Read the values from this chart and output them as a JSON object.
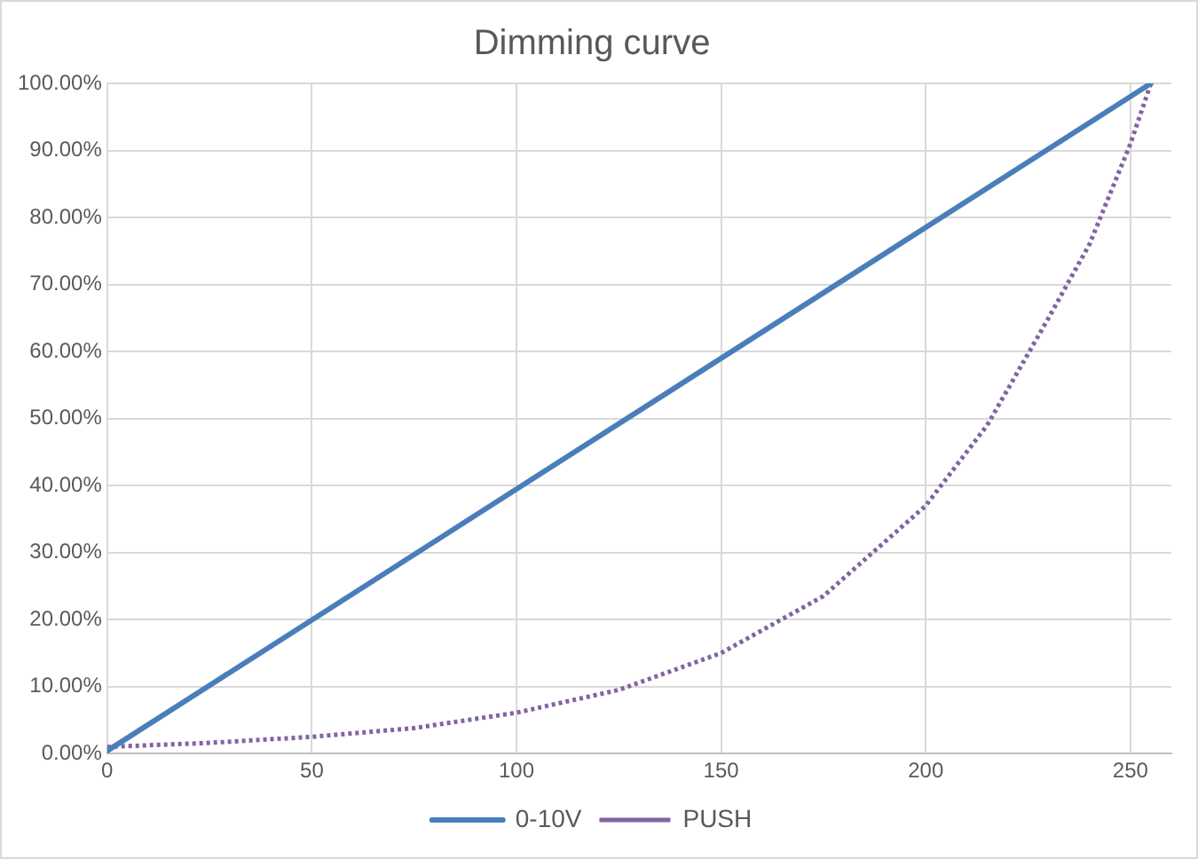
{
  "chart_data": {
    "type": "line",
    "title": "Dimming curve",
    "xlim": [
      0,
      260
    ],
    "xticks": [
      0,
      50,
      100,
      150,
      200,
      250
    ],
    "ylim": [
      0,
      100
    ],
    "yticks": [
      {
        "value": 0,
        "label": "0.00%"
      },
      {
        "value": 10,
        "label": "10.00%"
      },
      {
        "value": 20,
        "label": "20.00%"
      },
      {
        "value": 30,
        "label": "30.00%"
      },
      {
        "value": 40,
        "label": "40.00%"
      },
      {
        "value": 50,
        "label": "50.00%"
      },
      {
        "value": 60,
        "label": "60.00%"
      },
      {
        "value": 70,
        "label": "70.00%"
      },
      {
        "value": 80,
        "label": "80.00%"
      },
      {
        "value": 90,
        "label": "90.00%"
      },
      {
        "value": 100,
        "label": "100.00%"
      }
    ],
    "grid": true,
    "legend": "bottom",
    "marker": "none",
    "series": [
      {
        "name": "0-10V",
        "color": "#4a7ebb",
        "line_style": "solid",
        "x": [
          0,
          255
        ],
        "values": [
          0.4,
          100
        ]
      },
      {
        "name": "PUSH",
        "color": "#8064a2",
        "line_style": "dotted",
        "x": [
          0,
          25,
          50,
          75,
          100,
          125,
          150,
          175,
          200,
          215,
          230,
          240,
          250,
          255
        ],
        "values": [
          1,
          1.6,
          2.5,
          3.8,
          6.1,
          9.5,
          15,
          23.5,
          37,
          49,
          65,
          76,
          91,
          100
        ]
      }
    ]
  }
}
